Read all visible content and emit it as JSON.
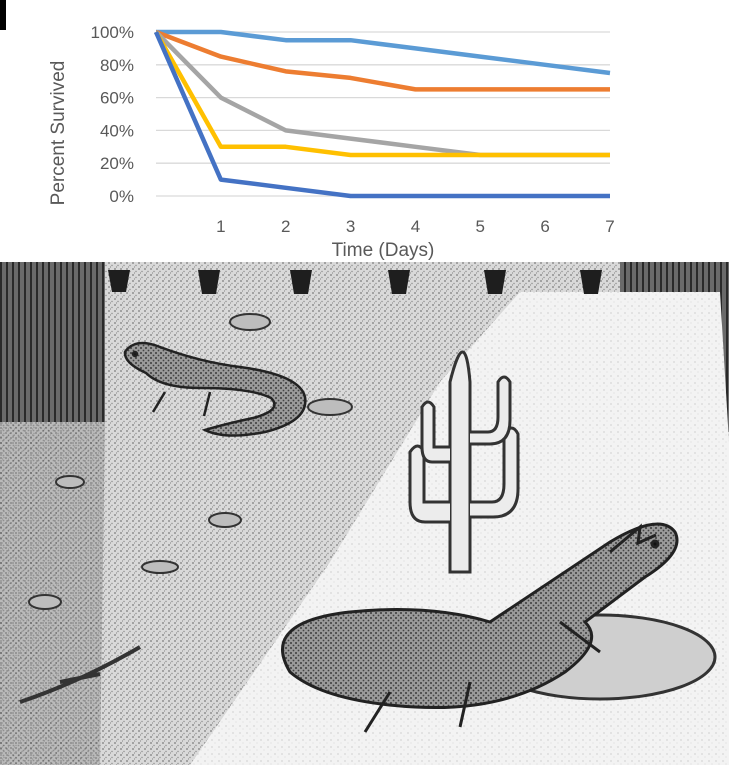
{
  "chart_data": {
    "type": "line",
    "title": "",
    "xlabel": "Time (Days)",
    "ylabel": "Percent Survived",
    "x": [
      0,
      1,
      2,
      3,
      4,
      5,
      6,
      7
    ],
    "x_ticks": [
      "1",
      "2",
      "3",
      "4",
      "5",
      "6",
      "7"
    ],
    "y_ticks": [
      "0%",
      "20%",
      "40%",
      "60%",
      "80%",
      "100%"
    ],
    "xlim": [
      0,
      7
    ],
    "ylim": [
      0,
      100
    ],
    "grid": "horizontal",
    "legend": "none",
    "series": [
      {
        "color": "#5b9bd5",
        "values": [
          100,
          100,
          95,
          95,
          90,
          85,
          80,
          75
        ]
      },
      {
        "color": "#ed7d31",
        "values": [
          100,
          85,
          76,
          72,
          65,
          65,
          65,
          65
        ]
      },
      {
        "color": "#a5a5a5",
        "values": [
          100,
          60,
          40,
          35,
          30,
          25,
          25,
          25
        ]
      },
      {
        "color": "#ffc000",
        "values": [
          100,
          30,
          30,
          25,
          25,
          25,
          25,
          25
        ]
      },
      {
        "color": "#4472c4",
        "values": [
          100,
          10,
          5,
          0,
          0,
          0,
          0,
          0
        ]
      }
    ]
  },
  "scene": {
    "image": "sketch-desert-terrarium",
    "subjects": [
      "lizard",
      "lizard",
      "cactus",
      "rock",
      "heat-lamp"
    ]
  }
}
